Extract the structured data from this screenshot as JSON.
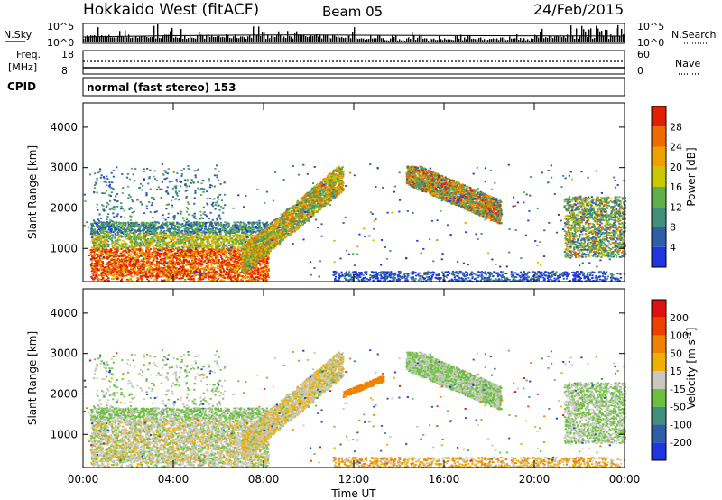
{
  "header": {
    "station": "Hokkaido West (fitACF)",
    "beam": "Beam 05",
    "date": "24/Feb/2015"
  },
  "top_panels": {
    "nsky_label": "N.Sky",
    "nsky_ticks": [
      "10^5",
      "10^0"
    ],
    "nsearch_label": "N.Search",
    "freq_label": "Freq.",
    "freq_unit": "[MHz]",
    "freq_ticks": [
      "18",
      "8"
    ],
    "nave_ticks": [
      "60",
      "0"
    ],
    "nave_label": "Nave",
    "cpid_label": "CPID",
    "cpid_value": "normal (fast stereo) 153"
  },
  "chart_data": [
    {
      "type": "heatmap",
      "name": "power",
      "ylabel": "Slant Range [km]",
      "ylim": [
        180,
        4600
      ],
      "y_ticks": [
        1000,
        2000,
        3000,
        4000
      ],
      "x_range_hours": [
        0,
        24
      ],
      "colorbar_label": "Power [dB]",
      "colorbar_ticks": [
        "4",
        "8",
        "12",
        "16",
        "20",
        "24",
        "28"
      ],
      "colorbar_colors": [
        "#1f35e0",
        "#2f5ea8",
        "#3f8f7a",
        "#5fb04a",
        "#c8c800",
        "#f0a000",
        "#f06a00",
        "#e02000"
      ],
      "regions": [
        {
          "t": [
            0.3,
            8.2
          ],
          "r": [
            200,
            1700
          ],
          "level": "high"
        },
        {
          "t": [
            7.5,
            11.5
          ],
          "r": [
            1000,
            3000
          ],
          "level": "mid"
        },
        {
          "t": [
            14.3,
            18.5
          ],
          "r": [
            1700,
            3000
          ],
          "level": "mid"
        },
        {
          "t": [
            21.3,
            24
          ],
          "r": [
            800,
            2300
          ],
          "level": "mid"
        }
      ]
    },
    {
      "type": "heatmap",
      "name": "velocity",
      "ylabel": "Slant Range [km]",
      "ylim": [
        180,
        4600
      ],
      "y_ticks": [
        1000,
        2000,
        3000,
        4000
      ],
      "xlabel": "Time UT",
      "x_ticks": [
        "00:00",
        "04:00",
        "08:00",
        "12:00",
        "16:00",
        "20:00",
        "00:00"
      ],
      "colorbar_label": "Velocity [m s^-1]",
      "colorbar_ticks": [
        "200",
        "100",
        "50",
        "15",
        "-15",
        "-50",
        "-100",
        "-200"
      ],
      "colorbar_colors": [
        "#1f35e0",
        "#2f5ea8",
        "#3f8f7a",
        "#6cc040",
        "#c8c8c0",
        "#f0b000",
        "#f08000",
        "#f04000",
        "#e01010"
      ]
    }
  ]
}
